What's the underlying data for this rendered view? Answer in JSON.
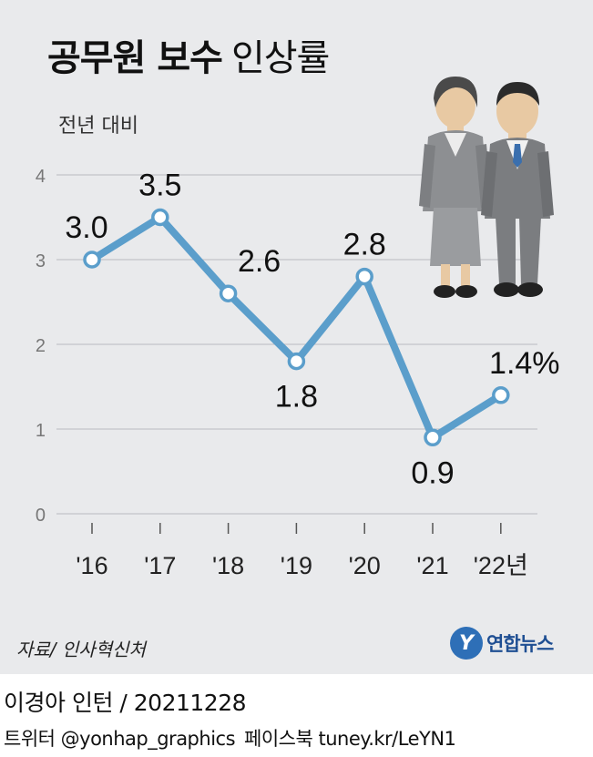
{
  "title": {
    "bold": "공무원 보수",
    "light": "인상률"
  },
  "subtitle": "전년 대비",
  "source": "자료/ 인사혁신처",
  "logo": {
    "mark": "Y",
    "text": "연합뉴스"
  },
  "credit": "이경아 인턴 / 20211228",
  "social": {
    "twitter": "트위터 @yonhap_graphics",
    "facebook": "페이스북 tuney.kr/LeYN1"
  },
  "colors": {
    "line": "#5b9ecb",
    "panel": "#e9eaec",
    "grid": "#b9bbbf"
  },
  "illustration": "two-office-workers-illustration",
  "chart_data": {
    "type": "line",
    "categories": [
      "'16",
      "'17",
      "'18",
      "'19",
      "'20",
      "'21",
      "'22년"
    ],
    "values": [
      3.0,
      3.5,
      2.6,
      1.8,
      2.8,
      0.9,
      1.4
    ],
    "value_labels": [
      "3.0",
      "3.5",
      "2.6",
      "1.8",
      "2.8",
      "0.9",
      "1.4%"
    ],
    "label_side": [
      "above",
      "above",
      "above",
      "below",
      "above",
      "below",
      "above"
    ],
    "y_ticks": [
      "0",
      "1",
      "2",
      "3",
      "4"
    ],
    "ylim": [
      0,
      4
    ],
    "grid": true,
    "title": "공무원 보수 인상률",
    "ylabel": "전년 대비"
  }
}
